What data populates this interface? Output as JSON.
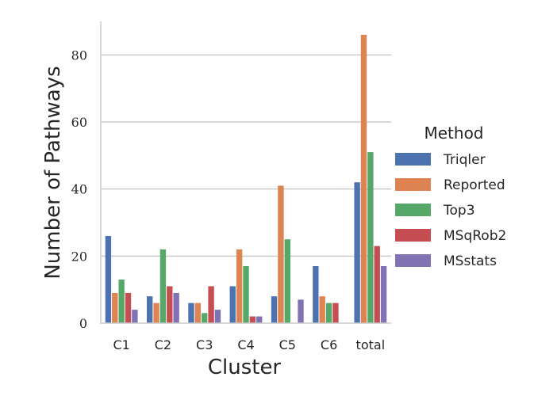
{
  "chart_data": {
    "type": "bar",
    "title": "",
    "xlabel": "Cluster",
    "ylabel": "Number of Pathways",
    "categories": [
      "C1",
      "C2",
      "C3",
      "C4",
      "C5",
      "C6",
      "total"
    ],
    "ylim": [
      0,
      90
    ],
    "yticks": [
      0,
      20,
      40,
      60,
      80
    ],
    "grid": "horizontal",
    "legend_title": "Method",
    "legend_placement": "right",
    "series": [
      {
        "name": "Triqler",
        "color": "#4c72b0",
        "values": [
          26,
          8,
          6,
          11,
          8,
          17,
          42
        ]
      },
      {
        "name": "Reported",
        "color": "#dd8452",
        "values": [
          9,
          6,
          6,
          22,
          41,
          8,
          86
        ]
      },
      {
        "name": "Top3",
        "color": "#55a868",
        "values": [
          13,
          22,
          3,
          17,
          25,
          6,
          51
        ]
      },
      {
        "name": "MSqRob2",
        "color": "#c44e52",
        "values": [
          9,
          11,
          11,
          2,
          0,
          6,
          23
        ]
      },
      {
        "name": "MSstats",
        "color": "#8172b3",
        "values": [
          4,
          9,
          4,
          2,
          7,
          0,
          17
        ]
      }
    ]
  }
}
